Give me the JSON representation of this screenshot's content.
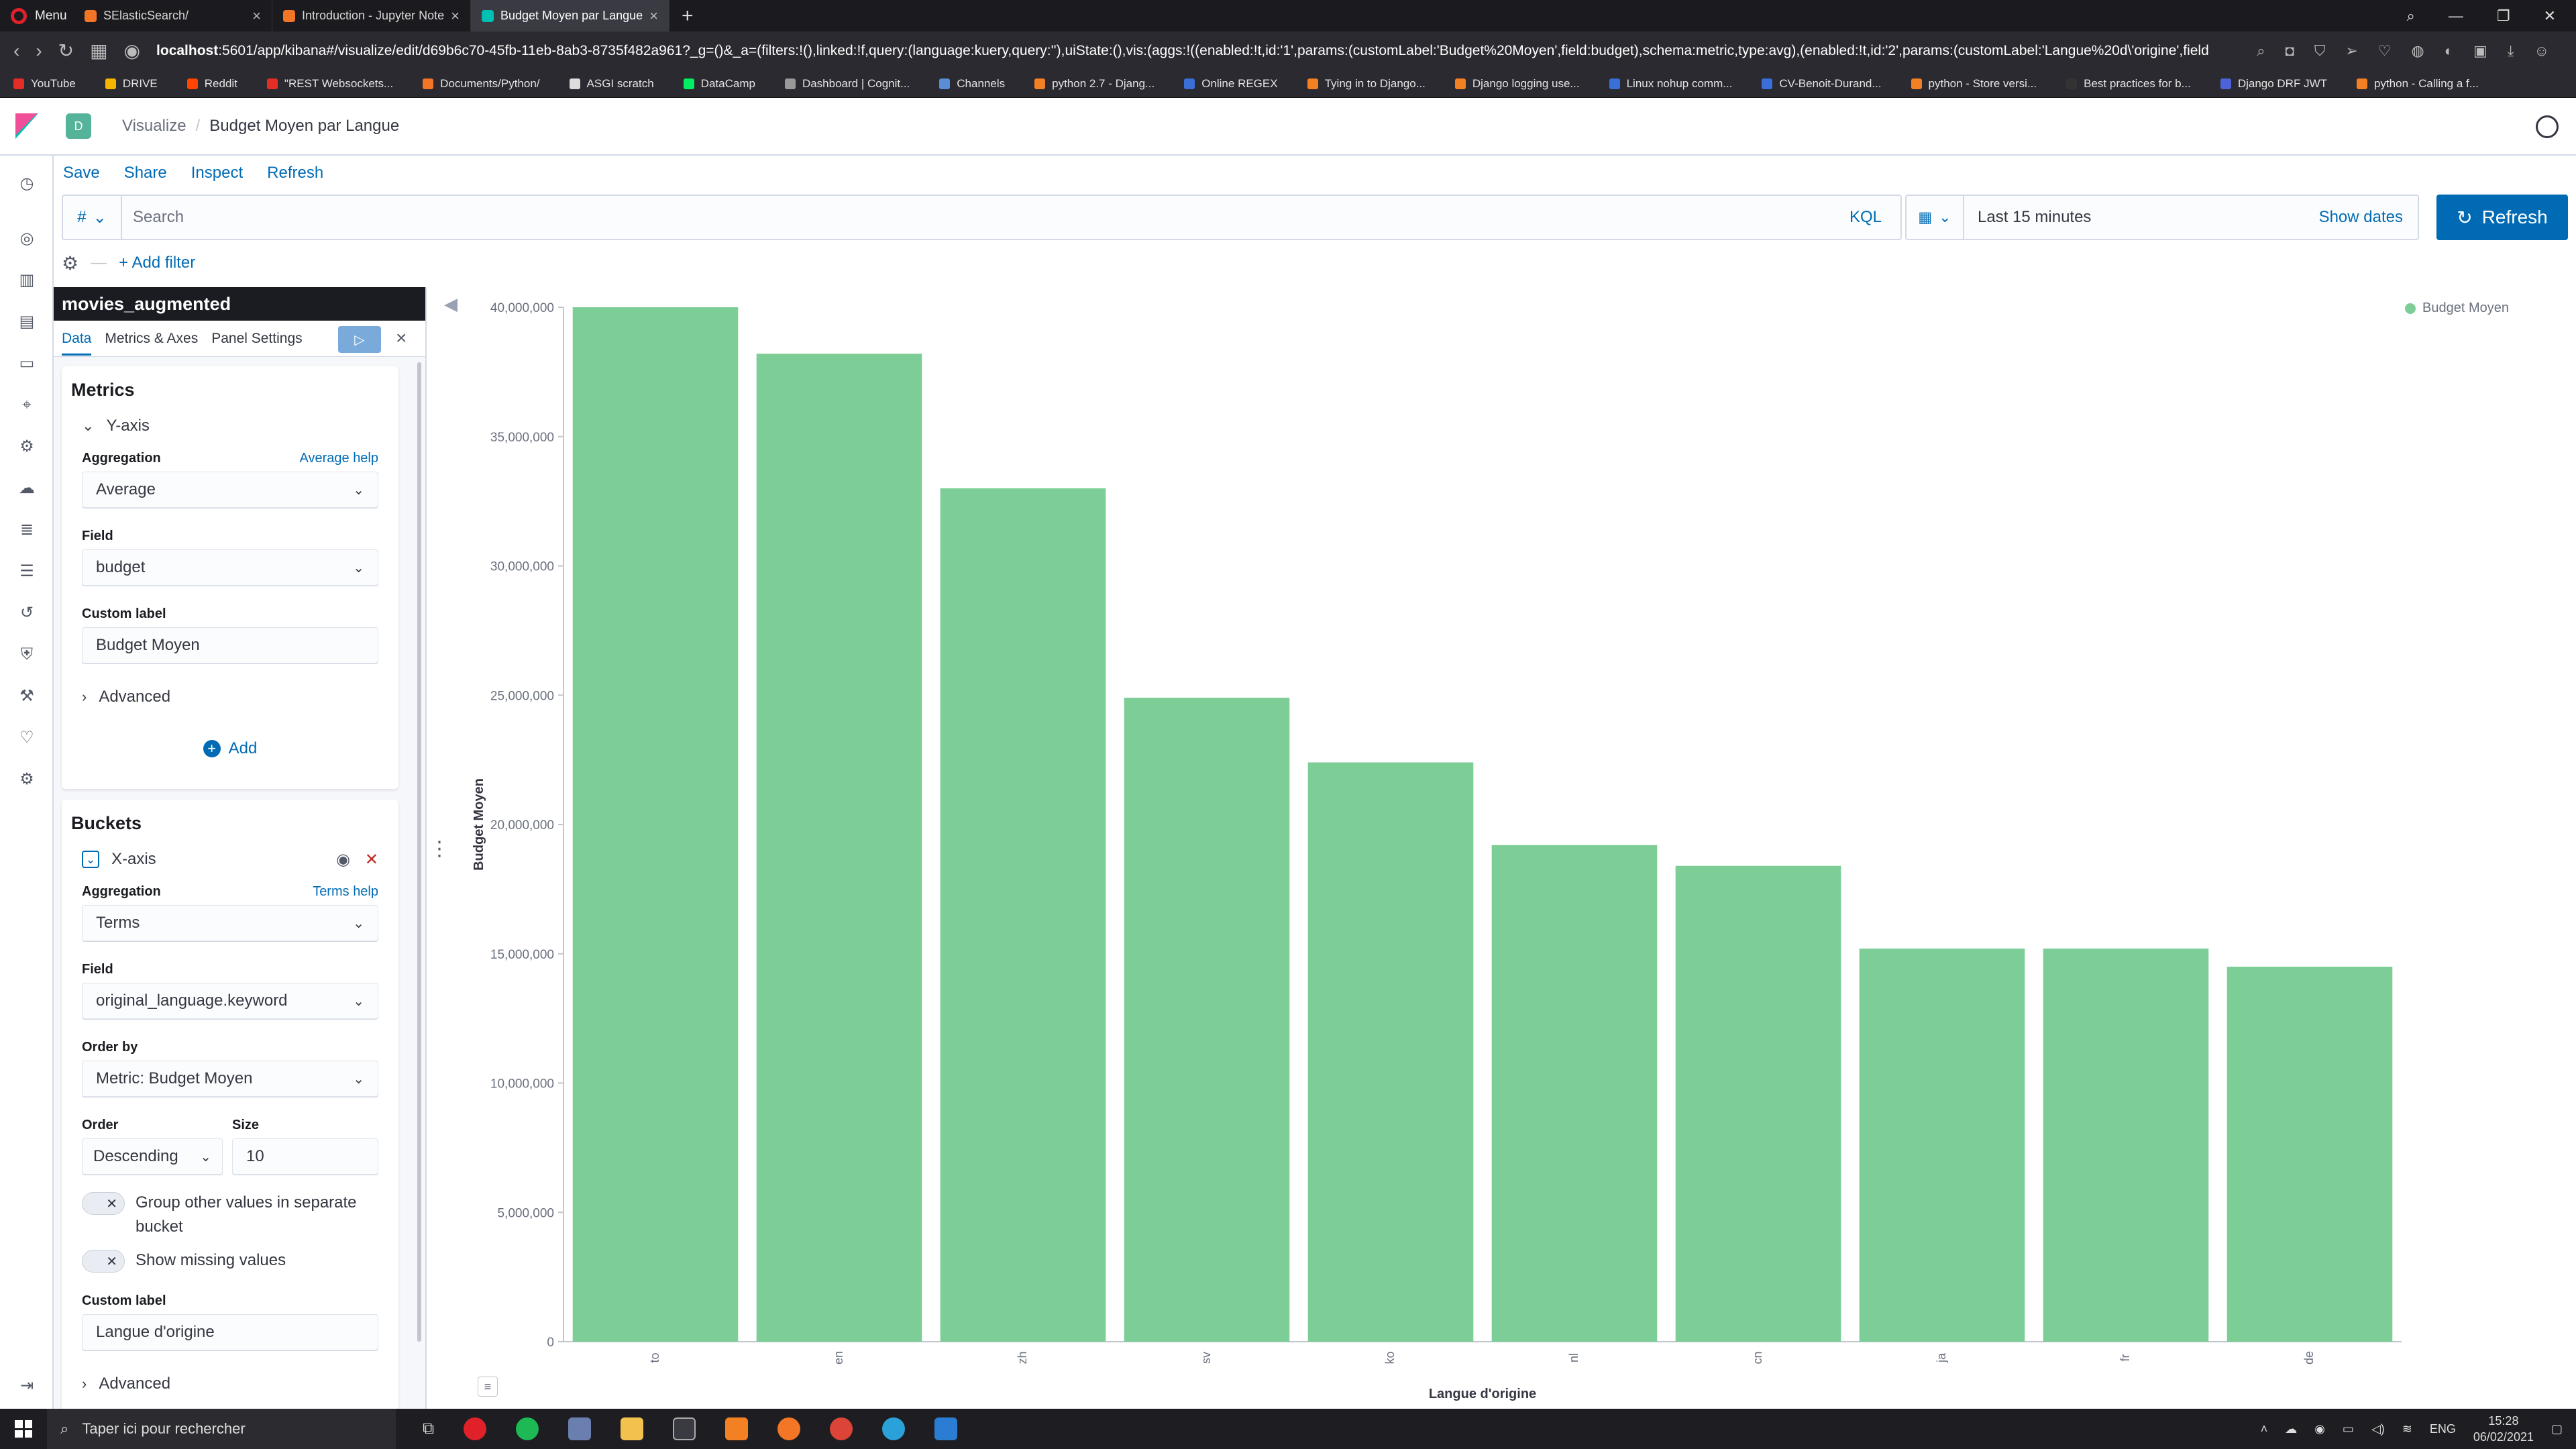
{
  "browser": {
    "menu_label": "Menu",
    "tabs": [
      {
        "label": "SElasticSearch/",
        "color": "#f37626"
      },
      {
        "label": "Introduction - Jupyter Note",
        "color": "#f37626"
      },
      {
        "label": "Budget Moyen par Langue",
        "color": "#00bfb3"
      }
    ],
    "url_host": "localhost",
    "url_rest": ":5601/app/kibana#/visualize/edit/d69b6c70-45fb-11eb-8ab3-8735f482a961?_g=()&_a=(filters:!(),linked:!f,query:(language:kuery,query:''),uiState:(),vis:(aggs:!((enabled:!t,id:'1',params:(customLabel:'Budget%20Moyen',field:budget),schema:metric,type:avg),(enabled:!t,id:'2',params:(customLabel:'Langue%20d\\'origine',field",
    "bookmarks": [
      {
        "label": "YouTube",
        "color": "#e52d27"
      },
      {
        "label": "DRIVE",
        "color": "#f4b400"
      },
      {
        "label": "Reddit",
        "color": "#ff4500"
      },
      {
        "label": "\"REST Websockets...",
        "color": "#e52d27"
      },
      {
        "label": "Documents/Python/",
        "color": "#f37626"
      },
      {
        "label": "ASGI scratch",
        "color": "#dddddd"
      },
      {
        "label": "DataCamp",
        "color": "#03ef62"
      },
      {
        "label": "Dashboard | Cognit...",
        "color": "#999999"
      },
      {
        "label": "Channels",
        "color": "#5b8dd6"
      },
      {
        "label": "python 2.7 - Djang...",
        "color": "#f48024"
      },
      {
        "label": "Online REGEX",
        "color": "#3b6fd8"
      },
      {
        "label": "Tying in to Django...",
        "color": "#f48024"
      },
      {
        "label": "Django logging use...",
        "color": "#f48024"
      },
      {
        "label": "Linux nohup comm...",
        "color": "#3b6fd8"
      },
      {
        "label": "CV-Benoit-Durand...",
        "color": "#3b6fd8"
      },
      {
        "label": "python - Store versi...",
        "color": "#f48024"
      },
      {
        "label": "Best practices for b...",
        "color": "#333333"
      },
      {
        "label": "Django DRF JWT",
        "color": "#4f63d8"
      },
      {
        "label": "python - Calling a f...",
        "color": "#f48024"
      }
    ]
  },
  "header": {
    "space_initial": "D",
    "breadcrumb_parent": "Visualize",
    "breadcrumb_current": "Budget Moyen par Langue"
  },
  "topnav": {
    "save": "Save",
    "share": "Share",
    "inspect": "Inspect",
    "refresh": "Refresh"
  },
  "query": {
    "lang_symbol": "#",
    "placeholder": "Search",
    "kql": "KQL"
  },
  "time": {
    "range": "Last 15 minutes",
    "show_dates": "Show dates",
    "refresh": "Refresh"
  },
  "filters": {
    "add_filter": "+ Add filter"
  },
  "editor": {
    "index_pattern": "movies_augmented",
    "tabs": [
      "Data",
      "Metrics & Axes",
      "Panel Settings"
    ],
    "metrics": {
      "title": "Metrics",
      "accordion": "Y-axis",
      "aggregation_label": "Aggregation",
      "aggregation_help": "Average help",
      "aggregation_value": "Average",
      "field_label": "Field",
      "field_value": "budget",
      "custom_label_label": "Custom label",
      "custom_label_value": "Budget Moyen",
      "advanced": "Advanced",
      "add": "Add"
    },
    "buckets": {
      "title": "Buckets",
      "accordion": "X-axis",
      "aggregation_label": "Aggregation",
      "aggregation_help": "Terms help",
      "aggregation_value": "Terms",
      "field_label": "Field",
      "field_value": "original_language.keyword",
      "order_by_label": "Order by",
      "order_by_value": "Metric: Budget Moyen",
      "order_label": "Order",
      "order_value": "Descending",
      "size_label": "Size",
      "size_value": "10",
      "group_other": "Group other values in separate bucket",
      "show_missing": "Show missing values",
      "custom_label_label": "Custom label",
      "custom_label_value": "Langue d'origine",
      "advanced": "Advanced"
    }
  },
  "chart_data": {
    "type": "bar",
    "categories": [
      "to",
      "en",
      "zh",
      "sv",
      "ko",
      "nl",
      "cn",
      "ja",
      "fr",
      "de"
    ],
    "series": [
      {
        "name": "Budget Moyen",
        "values": [
          40000000,
          38200000,
          33000000,
          24900000,
          22400000,
          19200000,
          18400000,
          15200000,
          15200000,
          14500000
        ],
        "color": "#7cce96"
      }
    ],
    "xlabel": "Langue d'origine",
    "ylabel": "Budget Moyen",
    "yticks": [
      "0",
      "5,000,000",
      "10,000,000",
      "15,000,000",
      "20,000,000",
      "25,000,000",
      "30,000,000",
      "35,000,000",
      "40,000,000"
    ],
    "ylim": [
      0,
      40000000
    ],
    "legend_position": "top-right",
    "grid": false
  },
  "taskbar": {
    "search_placeholder": "Taper ici pour rechercher",
    "lang": "ENG",
    "time": "15:28",
    "date": "06/02/2021"
  }
}
